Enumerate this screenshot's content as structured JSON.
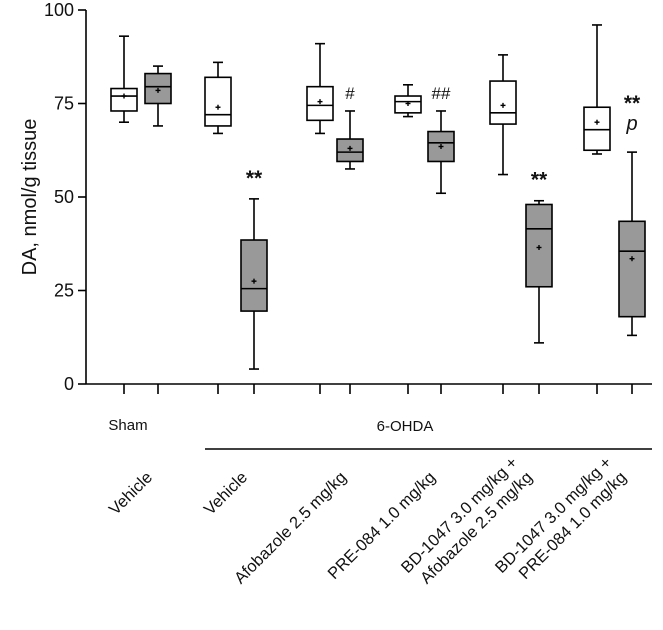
{
  "chart_data": {
    "type": "box",
    "ylabel": "DA, nmol/g tissue",
    "ylim": [
      0,
      100
    ],
    "yticks": [
      0,
      25,
      50,
      75,
      100
    ],
    "grid": false,
    "group_labels": [
      "Sham",
      "6-OHDA"
    ],
    "categories": [
      [
        "Vehicle"
      ],
      [
        "Vehicle"
      ],
      [
        "Afobazole 2.5 mg/kg"
      ],
      [
        "PRE-084 1.0 mg/kg"
      ],
      [
        "BD-1047 3.0 mg/kg +",
        "Afobazole 2.5 mg/kg"
      ],
      [
        "BD-1047 3.0 mg/kg +",
        "PRE-084 1.0 mg/kg"
      ]
    ],
    "boxes": [
      {
        "fill": "#ffffff",
        "min": 70,
        "q1": 73,
        "median": 77,
        "q3": 79,
        "max": 93,
        "mean": 77
      },
      {
        "fill": "#999999",
        "min": 69,
        "q1": 75,
        "median": 79.5,
        "q3": 83,
        "max": 85,
        "mean": 78.5
      },
      {
        "fill": "#ffffff",
        "min": 67,
        "q1": 69,
        "median": 72,
        "q3": 82,
        "max": 86,
        "mean": 74
      },
      {
        "fill": "#999999",
        "min": 4,
        "q1": 19.5,
        "median": 25.5,
        "q3": 38.5,
        "max": 49.5,
        "mean": 27.5
      },
      {
        "fill": "#ffffff",
        "min": 67,
        "q1": 70.5,
        "median": 74.5,
        "q3": 79.5,
        "max": 91,
        "mean": 75.5
      },
      {
        "fill": "#999999",
        "min": 57.5,
        "q1": 59.5,
        "median": 62,
        "q3": 65.5,
        "max": 73,
        "mean": 63
      },
      {
        "fill": "#ffffff",
        "min": 71.5,
        "q1": 72.5,
        "median": 75.5,
        "q3": 77,
        "max": 80,
        "mean": 75
      },
      {
        "fill": "#999999",
        "min": 51,
        "q1": 59.5,
        "median": 64.5,
        "q3": 67.5,
        "max": 73,
        "mean": 63.5
      },
      {
        "fill": "#ffffff",
        "min": 56,
        "q1": 69.5,
        "median": 72.5,
        "q3": 81,
        "max": 88,
        "mean": 74.5
      },
      {
        "fill": "#999999",
        "min": 11,
        "q1": 26,
        "median": 41.5,
        "q3": 48,
        "max": 49,
        "mean": 36.5
      },
      {
        "fill": "#ffffff",
        "min": 61.5,
        "q1": 62.5,
        "median": 68,
        "q3": 74,
        "max": 96,
        "mean": 70
      },
      {
        "fill": "#999999",
        "min": 13,
        "q1": 18,
        "median": 35.5,
        "q3": 43.5,
        "max": 62,
        "mean": 33.5
      }
    ],
    "annotations": [
      {
        "box": 3,
        "text": "**"
      },
      {
        "box": 5,
        "text": "#"
      },
      {
        "box": 7,
        "text": "##"
      },
      {
        "box": 9,
        "text": "**"
      },
      {
        "box": 11,
        "text": "**"
      },
      {
        "box": 11,
        "text": "p"
      }
    ]
  }
}
